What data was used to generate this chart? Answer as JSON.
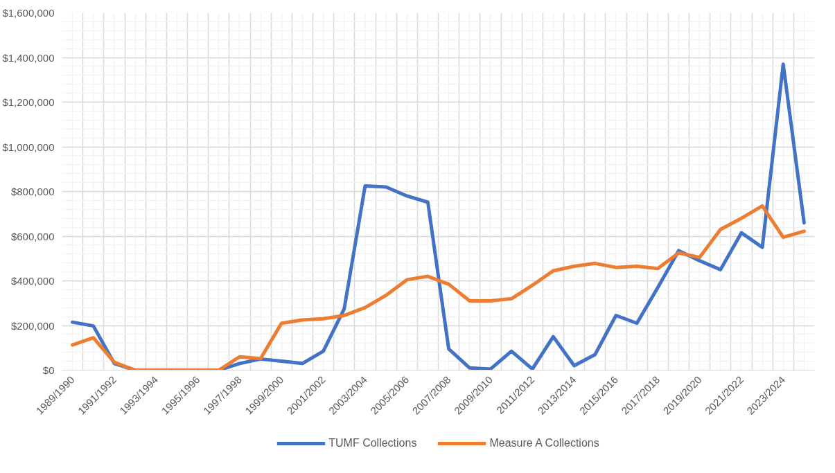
{
  "chart_data": {
    "type": "line",
    "categories": [
      "1989/1990",
      null,
      "1991/1992",
      null,
      "1993/1994",
      null,
      "1995/1996",
      null,
      "1997/1998",
      null,
      "1999/2000",
      null,
      "2001/2002",
      null,
      "2003/2004",
      null,
      "2005/2006",
      null,
      "2007/2008",
      null,
      "2009/2010",
      null,
      "2011/2012",
      null,
      "2013/2014",
      null,
      "2015/2016",
      null,
      "2017/2018",
      null,
      "2019/2020",
      null,
      "2021/2022",
      null,
      "2023/2024",
      null
    ],
    "series": [
      {
        "name": "TUMF Collections",
        "color": "#4472c4",
        "values": [
          215000,
          198000,
          30000,
          0,
          0,
          0,
          0,
          0,
          30000,
          50000,
          40000,
          30000,
          85000,
          275000,
          825000,
          820000,
          780000,
          752000,
          95000,
          10000,
          5000,
          85000,
          5000,
          150000,
          20000,
          70000,
          245000,
          210000,
          370000,
          535000,
          490000,
          450000,
          615000,
          550000,
          1370000,
          660000
        ]
      },
      {
        "name": "Measure A Collections",
        "color": "#ed7d31",
        "values": [
          113000,
          145000,
          35000,
          0,
          0,
          0,
          0,
          0,
          60000,
          52000,
          210000,
          225000,
          230000,
          245000,
          280000,
          335000,
          405000,
          420000,
          385000,
          310000,
          310000,
          320000,
          380000,
          445000,
          465000,
          478000,
          460000,
          465000,
          455000,
          525000,
          505000,
          630000,
          680000,
          735000,
          595000,
          622000
        ]
      }
    ],
    "ylim": [
      0,
      1600000
    ],
    "yticks": [
      {
        "value": 0,
        "label": "$0"
      },
      {
        "value": 200000,
        "label": "$200,000"
      },
      {
        "value": 400000,
        "label": "$400,000"
      },
      {
        "value": 600000,
        "label": "$600,000"
      },
      {
        "value": 800000,
        "label": "$800,000"
      },
      {
        "value": 1000000,
        "label": "$1,000,000"
      },
      {
        "value": 1200000,
        "label": "$1,200,000"
      },
      {
        "value": 1400000,
        "label": "$1,400,000"
      },
      {
        "value": 1600000,
        "label": "$1,600,000"
      }
    ],
    "grid": true,
    "legend": "bottom",
    "marker": "none",
    "line_style": "solid"
  }
}
